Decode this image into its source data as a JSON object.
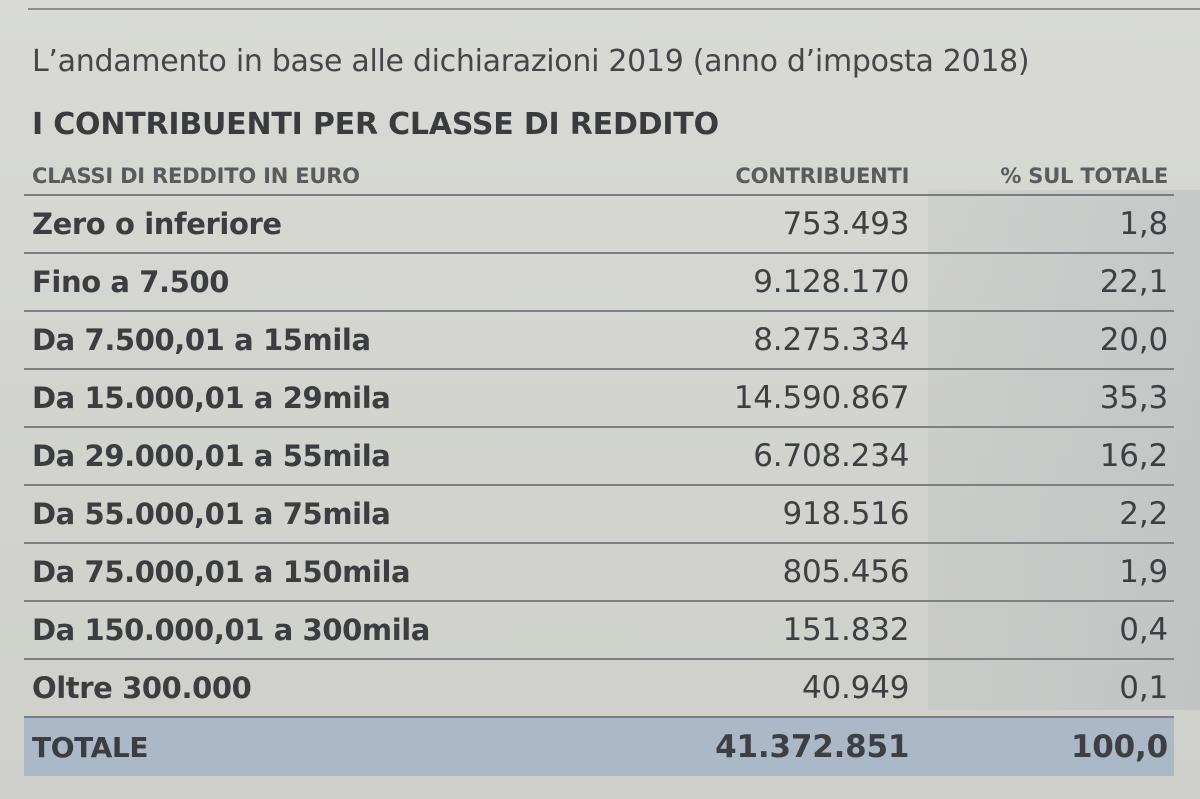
{
  "header": {
    "subtitle": "L’andamento in base alle dichiarazioni 2019 (anno d’imposta 2018)",
    "title": "I CONTRIBUENTI PER CLASSE DI REDDITO"
  },
  "table": {
    "columns": [
      "CLASSI DI REDDITO IN EURO",
      "CONTRIBUENTI",
      "% SUL TOTALE"
    ],
    "rows": [
      {
        "class": "Zero o inferiore",
        "contribuenti": "753.493",
        "percent": "1,8"
      },
      {
        "class": "Fino a 7.500",
        "contribuenti": "9.128.170",
        "percent": "22,1"
      },
      {
        "class": "Da 7.500,01 a 15mila",
        "contribuenti": "8.275.334",
        "percent": "20,0"
      },
      {
        "class": "Da 15.000,01 a 29mila",
        "contribuenti": "14.590.867",
        "percent": "35,3"
      },
      {
        "class": "Da 29.000,01 a 55mila",
        "contribuenti": "6.708.234",
        "percent": "16,2"
      },
      {
        "class": "Da 55.000,01 a 75mila",
        "contribuenti": "918.516",
        "percent": "2,2"
      },
      {
        "class": "Da 75.000,01 a 150mila",
        "contribuenti": "805.456",
        "percent": "1,9"
      },
      {
        "class": "Da 150.000,01 a 300mila",
        "contribuenti": "151.832",
        "percent": "0,4"
      },
      {
        "class": "Oltre 300.000",
        "contribuenti": "40.949",
        "percent": "0,1"
      }
    ],
    "total": {
      "class": "TOTALE",
      "contribuenti": "41.372.851",
      "percent": "100,0"
    }
  },
  "chart_data": {
    "type": "table",
    "title": "I CONTRIBUENTI PER CLASSE DI REDDITO",
    "subtitle": "L’andamento in base alle dichiarazioni 2019 (anno d’imposta 2018)",
    "columns": [
      "CLASSI DI REDDITO IN EURO",
      "CONTRIBUENTI",
      "% SUL TOTALE"
    ],
    "categories": [
      "Zero o inferiore",
      "Fino a 7.500",
      "Da 7.500,01 a 15mila",
      "Da 15.000,01 a 29mila",
      "Da 29.000,01 a 55mila",
      "Da 55.000,01 a 75mila",
      "Da 75.000,01 a 150mila",
      "Da 150.000,01 a 300mila",
      "Oltre 300.000",
      "TOTALE"
    ],
    "series": [
      {
        "name": "CONTRIBUENTI",
        "values": [
          753493,
          9128170,
          8275334,
          14590867,
          6708234,
          918516,
          805456,
          151832,
          40949,
          41372851
        ]
      },
      {
        "name": "% SUL TOTALE",
        "values": [
          1.8,
          22.1,
          20.0,
          35.3,
          16.2,
          2.2,
          1.9,
          0.4,
          0.1,
          100.0
        ]
      }
    ]
  },
  "colors": {
    "paper": "#d3d4cf",
    "text": "#3a3b3d",
    "total_row": "#aab8c7",
    "rule": "#7e7f83"
  }
}
